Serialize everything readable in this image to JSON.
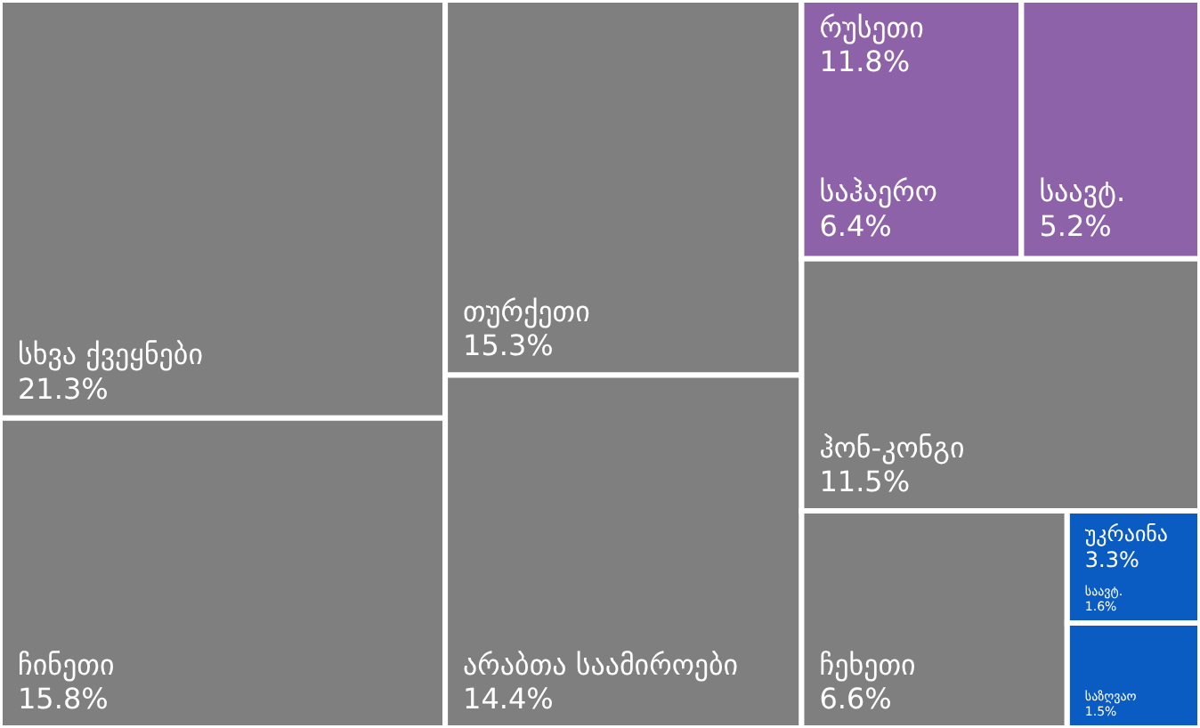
{
  "chart_data": {
    "type": "other",
    "categories": [
      "სხვა ქვეყნები",
      "ჩინეთი",
      "თურქეთი",
      "არაბთა საამიროები",
      "რუსეთი",
      "ჰონ-კონგი",
      "ჩეხეთი",
      "უკრაინა"
    ],
    "values": [
      21.3,
      15.8,
      15.3,
      14.4,
      11.8,
      11.5,
      6.6,
      3.3
    ],
    "value_labels": [
      "21.3%",
      "15.8%",
      "15.3%",
      "14.4%",
      "11.8%",
      "11.5%",
      "6.6%",
      "3.3%"
    ],
    "colors": [
      "#7f7f7f",
      "#7f7f7f",
      "#7f7f7f",
      "#7f7f7f",
      "#8e62a9",
      "#7f7f7f",
      "#7f7f7f",
      "#0a5cc2"
    ],
    "series": [
      {
        "name": "საჰაერო",
        "color": "#8e62a9",
        "values": [
          null,
          null,
          null,
          null,
          6.4,
          null,
          null,
          null
        ],
        "value_labels": [
          null,
          null,
          null,
          null,
          "6.4%",
          null,
          null,
          null
        ]
      },
      {
        "name": "საავტ.",
        "color": "#8e62a9",
        "values": [
          null,
          null,
          null,
          null,
          5.2,
          null,
          null,
          null
        ],
        "value_labels": [
          null,
          null,
          null,
          null,
          "5.2%",
          null,
          null,
          null
        ]
      },
      {
        "name": "საავტ.",
        "color": "#0a5cc2",
        "values": [
          null,
          null,
          null,
          null,
          null,
          null,
          null,
          1.6
        ],
        "value_labels": [
          null,
          null,
          null,
          null,
          null,
          null,
          null,
          "1.6%"
        ]
      },
      {
        "name": "საზღვაო",
        "color": "#0a5cc2",
        "values": [
          null,
          null,
          null,
          null,
          null,
          null,
          null,
          1.5
        ],
        "value_labels": [
          null,
          null,
          null,
          null,
          null,
          null,
          null,
          "1.5%"
        ]
      }
    ]
  }
}
